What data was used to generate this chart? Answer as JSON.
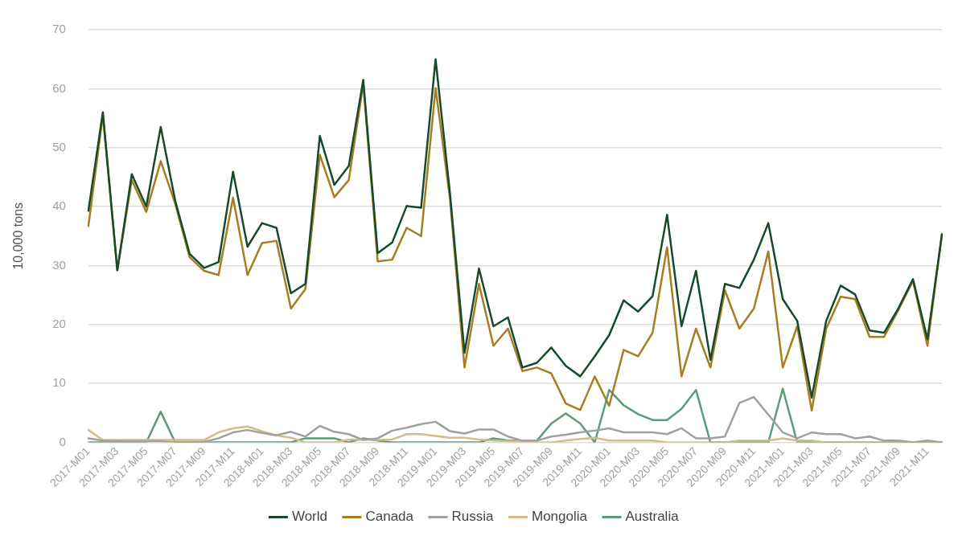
{
  "chart_data": {
    "type": "line",
    "ylabel": "10,000 tons",
    "categories": [
      "2017-M01",
      null,
      "2017-M03",
      null,
      "2017-M05",
      null,
      "2017-M07",
      null,
      "2017-M09",
      null,
      "2017-M11",
      null,
      "2018-M01",
      null,
      "2018-M03",
      null,
      "2018-M05",
      null,
      "2018-M07",
      null,
      "2018-M09",
      null,
      "2018-M11",
      null,
      "2019-M01",
      null,
      "2019-M03",
      null,
      "2019-M05",
      null,
      "2019-M07",
      null,
      "2019-M09",
      null,
      "2019-M11",
      null,
      "2020-M01",
      null,
      "2020-M03",
      null,
      "2020-M05",
      null,
      "2020-M07",
      null,
      "2020-M09",
      null,
      "2020-M11",
      null,
      "2021-M01",
      null,
      "2021-M03",
      null,
      "2021-M05",
      null,
      "2021-M07",
      null,
      "2021-M09",
      null,
      "2021-M11",
      null
    ],
    "series": [
      {
        "name": "World",
        "color": "#164a2b",
        "values": [
          39.3,
          56.0,
          29.2,
          45.5,
          40.0,
          53.5,
          41.0,
          32.0,
          29.6,
          30.6,
          45.9,
          33.2,
          37.2,
          36.4,
          25.3,
          26.9,
          52.0,
          43.7,
          46.9,
          61.5,
          32.1,
          33.9,
          40.1,
          39.8,
          65.0,
          42.1,
          15.2,
          29.5,
          19.7,
          21.2,
          12.7,
          13.5,
          16.1,
          13.0,
          11.2,
          14.6,
          18.2,
          24.1,
          22.2,
          24.8,
          38.6,
          19.7,
          29.1,
          14.0,
          26.9,
          26.2,
          31.0,
          37.2,
          24.3,
          20.6,
          7.6,
          20.6,
          26.6,
          25.1,
          19.0,
          18.6,
          22.8,
          27.7,
          17.5,
          35.3
        ]
      },
      {
        "name": "Canada",
        "color": "#a87d22",
        "values": [
          36.7,
          55.5,
          29.2,
          44.5,
          39.1,
          47.7,
          40.5,
          31.4,
          29.1,
          28.4,
          41.5,
          28.4,
          33.8,
          34.2,
          22.7,
          26.0,
          48.8,
          41.6,
          44.5,
          60.8,
          30.7,
          31.0,
          36.4,
          35.0,
          60.1,
          41.2,
          12.7,
          26.9,
          16.4,
          19.3,
          12.1,
          12.7,
          11.7,
          6.6,
          5.5,
          11.2,
          6.2,
          15.7,
          14.6,
          18.6,
          33.1,
          11.2,
          19.3,
          12.7,
          25.8,
          19.3,
          22.7,
          32.4,
          12.7,
          19.7,
          5.4,
          19.3,
          24.7,
          24.3,
          17.9,
          17.9,
          22.5,
          27.4,
          16.4,
          35.3
        ]
      },
      {
        "name": "Russia",
        "color": "#a0a0a0",
        "values": [
          0.7,
          0.3,
          0.2,
          0.2,
          0.2,
          0.2,
          0,
          0,
          0.1,
          0.7,
          1.7,
          2.1,
          1.6,
          1.2,
          1.8,
          1.0,
          2.8,
          1.8,
          1.4,
          0.4,
          0.7,
          2.0,
          2.5,
          3.1,
          3.5,
          1.9,
          1.5,
          2.2,
          2.2,
          1.0,
          0.3,
          0.3,
          1.0,
          1.3,
          1.7,
          2.0,
          2.4,
          1.7,
          1.7,
          1.7,
          1.4,
          2.4,
          0.7,
          0.7,
          1.0,
          6.7,
          7.7,
          4.7,
          1.7,
          0.7,
          1.7,
          1.4,
          1.4,
          0.7,
          1.0,
          0.3,
          0.3,
          0,
          0.3,
          0
        ]
      },
      {
        "name": "Mongolia",
        "color": "#d4bc86",
        "values": [
          2.1,
          0.4,
          0.4,
          0.4,
          0.4,
          0.4,
          0.4,
          0.4,
          0.4,
          1.7,
          2.4,
          2.7,
          1.9,
          1.2,
          0.8,
          0,
          0,
          0,
          0.5,
          0.5,
          0.4,
          0.5,
          1.4,
          1.4,
          1.1,
          0.8,
          0.8,
          0.5,
          0.3,
          0.2,
          0.2,
          0,
          0,
          0.3,
          0.6,
          0.8,
          0.3,
          0.3,
          0.3,
          0.3,
          0,
          0,
          0,
          0,
          0,
          0.3,
          0.3,
          0.3,
          0.7,
          0.3,
          0.3,
          0,
          0,
          0,
          0,
          0,
          0,
          0,
          0,
          0
        ]
      },
      {
        "name": "Australia",
        "color": "#5e9b7a",
        "values": [
          0,
          0,
          0,
          0,
          0,
          5.2,
          0,
          0,
          0,
          0,
          0,
          0,
          0,
          0,
          0,
          0.7,
          0.7,
          0.7,
          0,
          0.7,
          0.3,
          0,
          0,
          0,
          0,
          0,
          0,
          0,
          0.7,
          0.3,
          0.3,
          0.3,
          3.2,
          4.9,
          3.2,
          0,
          8.9,
          6.3,
          4.8,
          3.8,
          3.8,
          5.7,
          8.9,
          0,
          0,
          0,
          0,
          0,
          9.1,
          0,
          0,
          0,
          0,
          0,
          0,
          0,
          0,
          0,
          0,
          0
        ]
      }
    ],
    "ylim": [
      0,
      70
    ],
    "yticks": [
      0,
      10,
      20,
      30,
      40,
      50,
      60,
      70
    ],
    "grid": "y",
    "legend": "bottom",
    "marker": "none",
    "line_style": "solid"
  }
}
